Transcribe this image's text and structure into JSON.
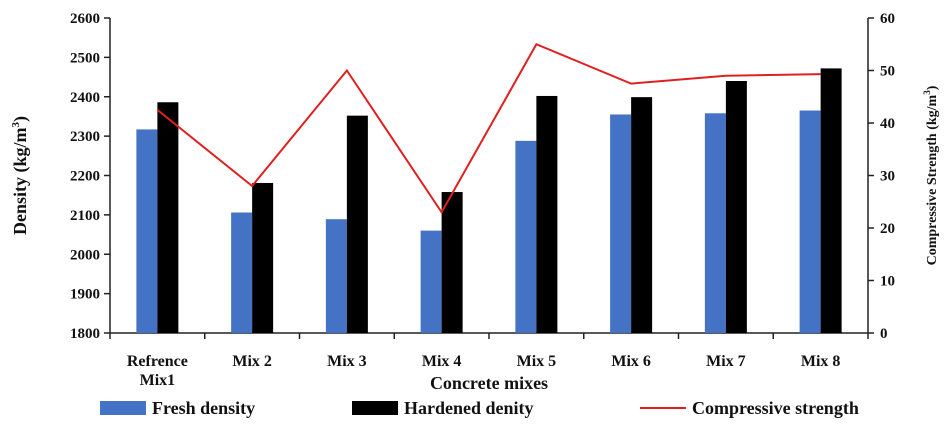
{
  "chart_data": {
    "type": "bar",
    "categories": [
      "Refrence Mix1",
      "Mix 2",
      "Mix 3",
      "Mix 4",
      "Mix 5",
      "Mix 6",
      "Mix 7",
      "Mix 8"
    ],
    "category_lines": [
      [
        "Refrence",
        "Mix1"
      ],
      [
        "Mix 2"
      ],
      [
        "Mix 3"
      ],
      [
        "Mix 4"
      ],
      [
        "Mix 5"
      ],
      [
        "Mix 6"
      ],
      [
        "Mix 7"
      ],
      [
        "Mix 8"
      ]
    ],
    "series": [
      {
        "name": "Fresh density",
        "type": "bar",
        "axis": "left",
        "color": "#4472C4",
        "values": [
          2317,
          2106,
          2089,
          2060,
          2288,
          2355,
          2358,
          2365
        ]
      },
      {
        "name": "Hardened denity",
        "type": "bar",
        "axis": "left",
        "color": "#000000",
        "values": [
          2386,
          2181,
          2352,
          2158,
          2402,
          2399,
          2440,
          2472
        ]
      },
      {
        "name": "Compressive strength",
        "type": "line",
        "axis": "right",
        "color": "#E02020",
        "values": [
          42.5,
          28,
          50,
          23,
          55,
          47.5,
          49,
          49.3
        ]
      }
    ],
    "xlabel": "Concrete mixes",
    "ylabel_main": "Density (kg/m",
    "ylabel_sup": "3",
    "ylabel_end": ")",
    "y2label_main": "Compressive Strength (kg/m",
    "y2label_sup": "3",
    "y2label_end": ")",
    "ylim": [
      1800,
      2600
    ],
    "yticks": [
      1800,
      1900,
      2000,
      2100,
      2200,
      2300,
      2400,
      2500,
      2600
    ],
    "y2lim": [
      0,
      60
    ],
    "y2ticks": [
      0,
      10,
      20,
      30,
      40,
      50,
      60
    ],
    "legend_position": "bottom",
    "grid": false
  }
}
